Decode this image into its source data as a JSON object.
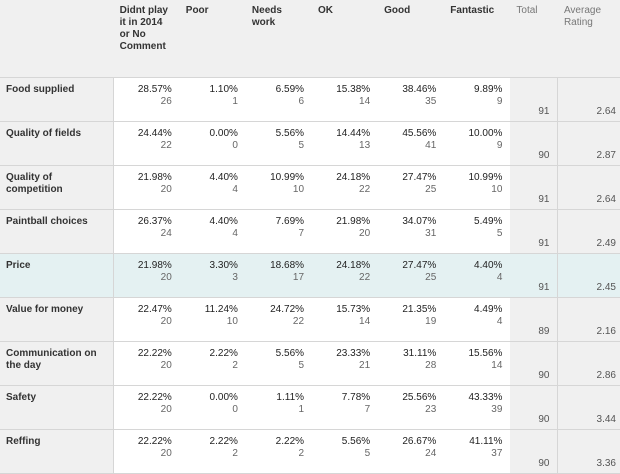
{
  "columns": {
    "blank": "",
    "options": [
      "Didnt play it in 2014 or No Comment",
      "Poor",
      "Needs work",
      "OK",
      "Good",
      "Fantastic"
    ],
    "total": "Total",
    "average": "Average Rating"
  },
  "highlight_color": "#e4f1f2",
  "rows": [
    {
      "label": "Food supplied",
      "cells": [
        [
          "28.57%",
          "26"
        ],
        [
          "1.10%",
          "1"
        ],
        [
          "6.59%",
          "6"
        ],
        [
          "15.38%",
          "14"
        ],
        [
          "38.46%",
          "35"
        ],
        [
          "9.89%",
          "9"
        ]
      ],
      "total": "91",
      "average": "2.64"
    },
    {
      "label": "Quality of fields",
      "cells": [
        [
          "24.44%",
          "22"
        ],
        [
          "0.00%",
          "0"
        ],
        [
          "5.56%",
          "5"
        ],
        [
          "14.44%",
          "13"
        ],
        [
          "45.56%",
          "41"
        ],
        [
          "10.00%",
          "9"
        ]
      ],
      "total": "90",
      "average": "2.87"
    },
    {
      "label": "Quality of competition",
      "cells": [
        [
          "21.98%",
          "20"
        ],
        [
          "4.40%",
          "4"
        ],
        [
          "10.99%",
          "10"
        ],
        [
          "24.18%",
          "22"
        ],
        [
          "27.47%",
          "25"
        ],
        [
          "10.99%",
          "10"
        ]
      ],
      "total": "91",
      "average": "2.64"
    },
    {
      "label": "Paintball choices",
      "cells": [
        [
          "26.37%",
          "24"
        ],
        [
          "4.40%",
          "4"
        ],
        [
          "7.69%",
          "7"
        ],
        [
          "21.98%",
          "20"
        ],
        [
          "34.07%",
          "31"
        ],
        [
          "5.49%",
          "5"
        ]
      ],
      "total": "91",
      "average": "2.49"
    },
    {
      "label": "Price",
      "cells": [
        [
          "21.98%",
          "20"
        ],
        [
          "3.30%",
          "3"
        ],
        [
          "18.68%",
          "17"
        ],
        [
          "24.18%",
          "22"
        ],
        [
          "27.47%",
          "25"
        ],
        [
          "4.40%",
          "4"
        ]
      ],
      "total": "91",
      "average": "2.45"
    },
    {
      "label": "Value for money",
      "cells": [
        [
          "22.47%",
          "20"
        ],
        [
          "11.24%",
          "10"
        ],
        [
          "24.72%",
          "22"
        ],
        [
          "15.73%",
          "14"
        ],
        [
          "21.35%",
          "19"
        ],
        [
          "4.49%",
          "4"
        ]
      ],
      "total": "89",
      "average": "2.16"
    },
    {
      "label": "Communication on the day",
      "cells": [
        [
          "22.22%",
          "20"
        ],
        [
          "2.22%",
          "2"
        ],
        [
          "5.56%",
          "5"
        ],
        [
          "23.33%",
          "21"
        ],
        [
          "31.11%",
          "28"
        ],
        [
          "15.56%",
          "14"
        ]
      ],
      "total": "90",
      "average": "2.86"
    },
    {
      "label": "Safety",
      "cells": [
        [
          "22.22%",
          "20"
        ],
        [
          "0.00%",
          "0"
        ],
        [
          "1.11%",
          "1"
        ],
        [
          "7.78%",
          "7"
        ],
        [
          "25.56%",
          "23"
        ],
        [
          "43.33%",
          "39"
        ]
      ],
      "total": "90",
      "average": "3.44"
    },
    {
      "label": "Reffing",
      "cells": [
        [
          "22.22%",
          "20"
        ],
        [
          "2.22%",
          "2"
        ],
        [
          "2.22%",
          "2"
        ],
        [
          "5.56%",
          "5"
        ],
        [
          "26.67%",
          "24"
        ],
        [
          "41.11%",
          "37"
        ]
      ],
      "total": "90",
      "average": "3.36"
    }
  ]
}
